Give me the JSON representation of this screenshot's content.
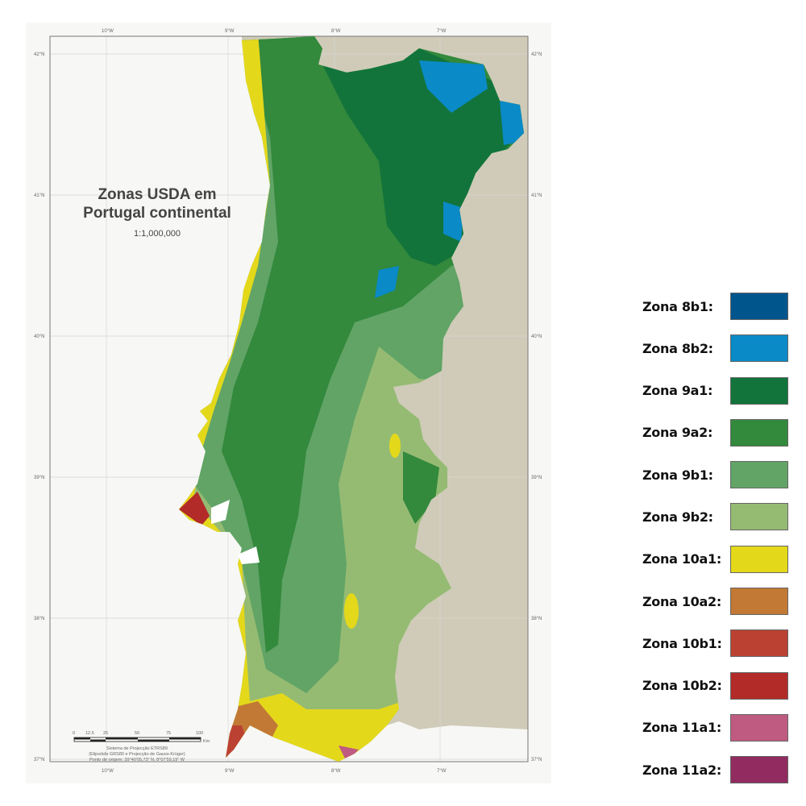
{
  "map": {
    "title_line1": "Zonas USDA em",
    "title_line2": "Portugal continental",
    "scale_ratio": "1:1,000,000",
    "longitude_labels": [
      "10°W",
      "9°W",
      "8°W",
      "7°W"
    ],
    "latitude_labels": [
      "42°N",
      "41°N",
      "40°N",
      "39°N",
      "38°N",
      "37°N"
    ],
    "scale_bar": {
      "ticks": [
        "0",
        "12.5",
        "25",
        "50",
        "75",
        "100"
      ],
      "unit": "Km"
    },
    "projection_lines": [
      "Sistema de Projecção ETRS89",
      "(Elipsóide GRS80 e Projecção de Gauss-Krüger)",
      "Ponto de origem: 39°40'05,73\" N, 8°07'59,19\" W"
    ]
  },
  "legend": [
    {
      "label": "Zona 8b1:",
      "color": "#00558c"
    },
    {
      "label": "Zona 8b2:",
      "color": "#0a8ac6"
    },
    {
      "label": "Zona 9a1:",
      "color": "#12743a"
    },
    {
      "label": "Zona 9a2:",
      "color": "#33893c"
    },
    {
      "label": "Zona 9b1:",
      "color": "#61a466"
    },
    {
      "label": "Zona 9b2:",
      "color": "#95bb73"
    },
    {
      "label": "Zona 10a1:",
      "color": "#e4d81b"
    },
    {
      "label": "Zona 10a2:",
      "color": "#c27935"
    },
    {
      "label": "Zona 10b1:",
      "color": "#bb4232"
    },
    {
      "label": "Zona 10b2:",
      "color": "#b22b29"
    },
    {
      "label": "Zona 11a1:",
      "color": "#bf5a80"
    },
    {
      "label": "Zona 11a2:",
      "color": "#922b60"
    }
  ]
}
